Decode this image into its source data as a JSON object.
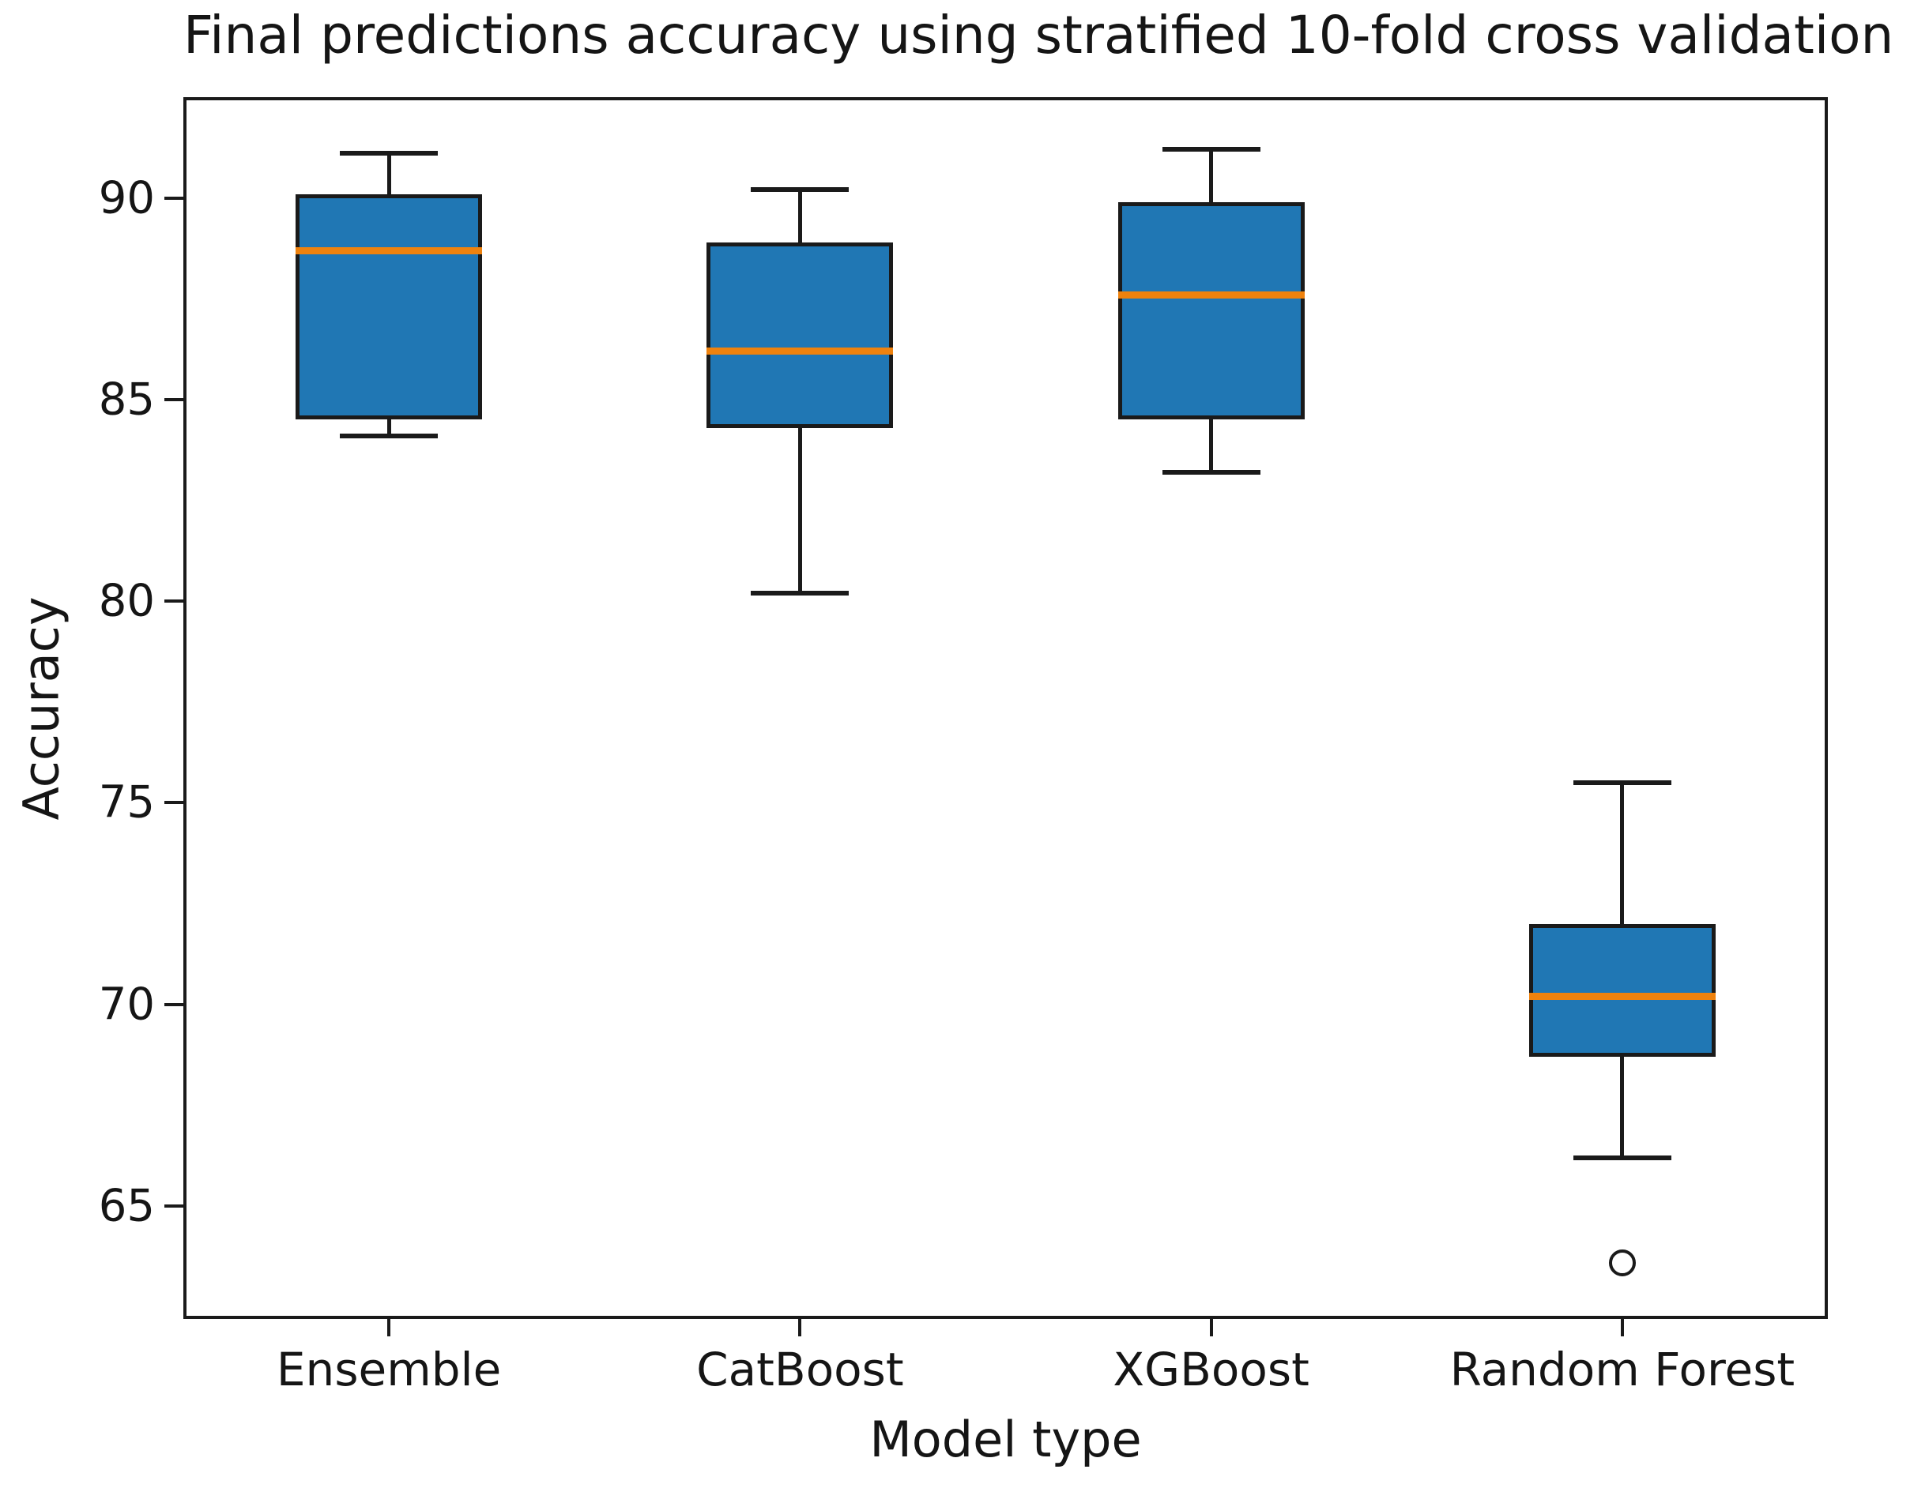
{
  "chart_data": {
    "type": "boxplot",
    "title": "Final predictions accuracy using stratified 10-fold cross validation",
    "xlabel": "Model type",
    "ylabel": "Accuracy",
    "ylim": [
      62.2,
      92.5
    ],
    "yticks": [
      65,
      70,
      75,
      80,
      85,
      90
    ],
    "grid": false,
    "legend": "none",
    "categories": [
      "Ensemble",
      "CatBoost",
      "XGBoost",
      "Random Forest"
    ],
    "series": [
      {
        "name": "Ensemble",
        "whisker_low": 84.1,
        "q1": 84.5,
        "median": 88.7,
        "q3": 90.1,
        "whisker_high": 91.1,
        "outliers": []
      },
      {
        "name": "CatBoost",
        "whisker_low": 80.2,
        "q1": 84.3,
        "median": 86.2,
        "q3": 88.9,
        "whisker_high": 90.2,
        "outliers": []
      },
      {
        "name": "XGBoost",
        "whisker_low": 83.2,
        "q1": 84.5,
        "median": 87.6,
        "q3": 89.9,
        "whisker_high": 91.2,
        "outliers": []
      },
      {
        "name": "Random Forest",
        "whisker_low": 66.2,
        "q1": 68.7,
        "median": 70.2,
        "q3": 72.0,
        "whisker_high": 75.5,
        "outliers": [
          63.6
        ]
      }
    ],
    "colors": {
      "box_fill": "#2077b4",
      "median": "#ee820e",
      "line": "#1a1a1a",
      "background": "#ffffff"
    }
  }
}
